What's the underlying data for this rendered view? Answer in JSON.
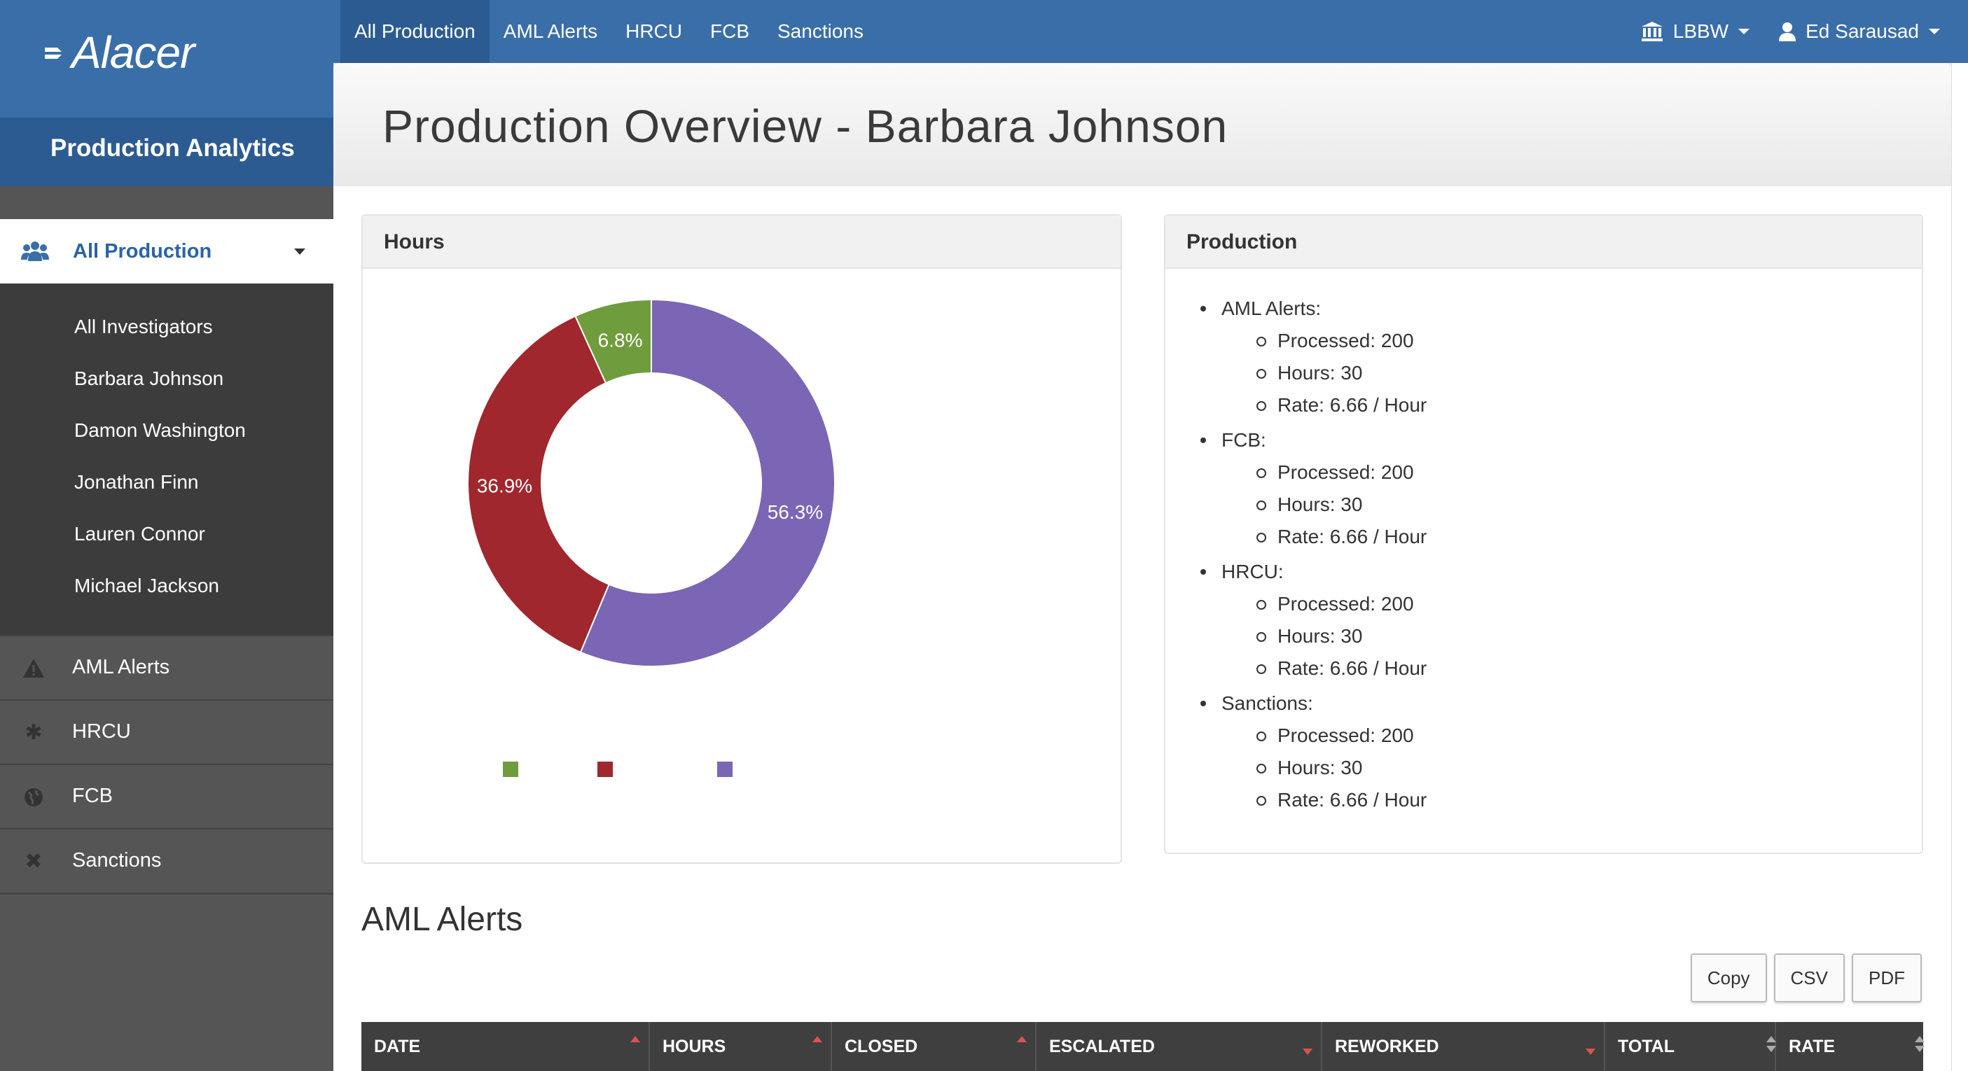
{
  "app": {
    "logo_text": "Alacer",
    "section_title": "Production Analytics"
  },
  "topnav": {
    "items": [
      {
        "label": "All Production",
        "active": true
      },
      {
        "label": "AML Alerts"
      },
      {
        "label": "HRCU"
      },
      {
        "label": "FCB"
      },
      {
        "label": "Sanctions"
      }
    ],
    "org": {
      "label": "LBBW",
      "icon": "bank-icon"
    },
    "user": {
      "label": "Ed Sarausad",
      "icon": "user-icon"
    }
  },
  "sidebar": {
    "active": {
      "label": "All Production",
      "icon": "users-icon"
    },
    "subitems": [
      "All Investigators",
      "Barbara Johnson",
      "Damon Washington",
      "Jonathan Finn",
      "Lauren Connor",
      "Michael Jackson"
    ],
    "sections": [
      {
        "label": "AML Alerts",
        "icon": "warning-icon"
      },
      {
        "label": "HRCU",
        "icon": "asterisk-icon"
      },
      {
        "label": "FCB",
        "icon": "globe-icon"
      },
      {
        "label": "Sanctions",
        "icon": "close-icon"
      }
    ]
  },
  "page": {
    "title": "Production Overview - Barbara Johnson"
  },
  "hours_panel": {
    "title": "Hours"
  },
  "chart_data": {
    "type": "pie",
    "title": "",
    "slices": [
      {
        "label": "6.8%",
        "value": 6.8,
        "color": "#6f9c3d"
      },
      {
        "label": "36.9%",
        "value": 36.9,
        "color": "#a0272d"
      },
      {
        "label": "56.3%",
        "value": 56.3,
        "color": "#7b65b5"
      }
    ],
    "legend_placement": "bottom"
  },
  "production_panel": {
    "title": "Production",
    "categories": [
      {
        "name": "AML Alerts:",
        "items": [
          "Processed: 200",
          "Hours: 30",
          "Rate: 6.66 / Hour"
        ]
      },
      {
        "name": "FCB:",
        "items": [
          "Processed: 200",
          "Hours: 30",
          "Rate: 6.66 / Hour"
        ]
      },
      {
        "name": "HRCU:",
        "items": [
          "Processed: 200",
          "Hours: 30",
          "Rate: 6.66 / Hour"
        ]
      },
      {
        "name": "Sanctions:",
        "items": [
          "Processed: 200",
          "Hours: 30",
          "Rate: 6.66 / Hour"
        ]
      }
    ]
  },
  "aml_section": {
    "title": "AML Alerts",
    "buttons": [
      "Copy",
      "CSV",
      "PDF"
    ],
    "columns": [
      "DATE",
      "HOURS",
      "CLOSED",
      "ESCALATED",
      "REWORKED",
      "TOTAL",
      "RATE"
    ]
  }
}
